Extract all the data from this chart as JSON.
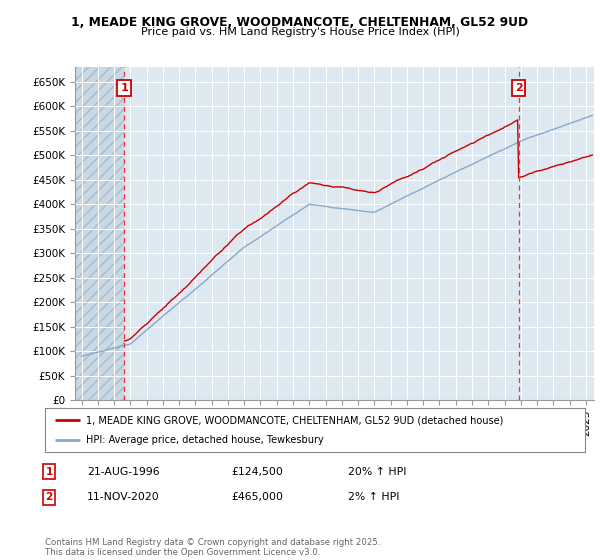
{
  "title_line1": "1, MEADE KING GROVE, WOODMANCOTE, CHELTENHAM, GL52 9UD",
  "title_line2": "Price paid vs. HM Land Registry's House Price Index (HPI)",
  "ylim": [
    0,
    680000
  ],
  "yticks": [
    0,
    50000,
    100000,
    150000,
    200000,
    250000,
    300000,
    350000,
    400000,
    450000,
    500000,
    550000,
    600000,
    650000
  ],
  "ytick_labels": [
    "£0",
    "£50K",
    "£100K",
    "£150K",
    "£200K",
    "£250K",
    "£300K",
    "£350K",
    "£400K",
    "£450K",
    "£500K",
    "£550K",
    "£600K",
    "£650K"
  ],
  "xlim_start": 1993.6,
  "xlim_end": 2025.5,
  "sale1_date": 1996.64,
  "sale1_price": 124500,
  "sale2_date": 2020.86,
  "sale2_price": 465000,
  "red_line_color": "#cc0000",
  "blue_line_color": "#88aacc",
  "annotation_box_color": "#cc0000",
  "dashed_line_color": "#ee3333",
  "background_color": "#dde8f0",
  "grid_color": "#ffffff",
  "legend_label1": "1, MEADE KING GROVE, WOODMANCOTE, CHELTENHAM, GL52 9UD (detached house)",
  "legend_label2": "HPI: Average price, detached house, Tewkesbury",
  "table_row1": [
    "1",
    "21-AUG-1996",
    "£124,500",
    "20% ↑ HPI"
  ],
  "table_row2": [
    "2",
    "11-NOV-2020",
    "£465,000",
    "2% ↑ HPI"
  ],
  "footer_text": "Contains HM Land Registry data © Crown copyright and database right 2025.\nThis data is licensed under the Open Government Licence v3.0.",
  "hatch_facecolor": "#c8d8e4",
  "hatch_edgecolor": "#aabbc8"
}
